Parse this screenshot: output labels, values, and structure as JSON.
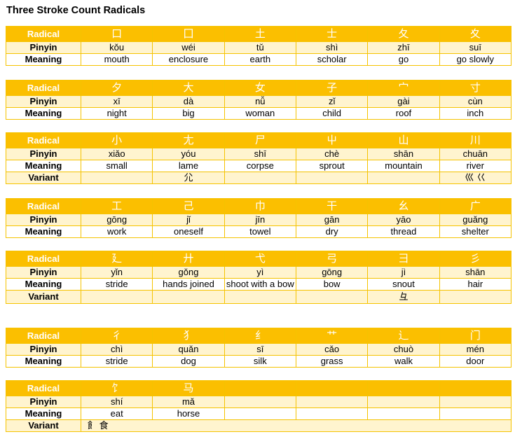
{
  "title": "Three Stroke Count Radicals",
  "labels": {
    "radical": "Radical",
    "pinyin": "Pinyin",
    "meaning": "Meaning",
    "variant": "Variant"
  },
  "colors": {
    "header_bg": "#fbbf00",
    "alt_row_bg": "#fff4cf",
    "border": "#f5c300"
  },
  "tables": [
    {
      "radicals": [
        "口",
        "囗",
        "土",
        "士",
        "夂",
        "夊"
      ],
      "pinyin": [
        "kǒu",
        "wéi",
        "tǔ",
        "shì",
        "zhī",
        "suī"
      ],
      "meaning": [
        "mouth",
        "enclosure",
        "earth",
        "scholar",
        "go",
        "go slowly"
      ]
    },
    {
      "radicals": [
        "夕",
        "大",
        "女",
        "子",
        "宀",
        "寸"
      ],
      "pinyin": [
        "xī",
        "dà",
        "nǚ",
        "zǐ",
        "gài",
        "cùn"
      ],
      "meaning": [
        "night",
        "big",
        "woman",
        "child",
        "roof",
        "inch"
      ]
    },
    {
      "radicals": [
        "小",
        "尢",
        "尸",
        "屮",
        "山",
        "川"
      ],
      "pinyin": [
        "xiǎo",
        "yóu",
        "shī",
        "chè",
        "shān",
        "chuān"
      ],
      "meaning": [
        "small",
        "lame",
        "corpse",
        "sprout",
        "mountain",
        "river"
      ],
      "variant": [
        "",
        "尣",
        "",
        "",
        "",
        "巛 巜"
      ]
    },
    {
      "radicals": [
        "工",
        "己",
        "巾",
        "干",
        "幺",
        "广"
      ],
      "pinyin": [
        "gōng",
        "jǐ",
        "jīn",
        "gān",
        "yāo",
        "guǎng"
      ],
      "meaning": [
        "work",
        "oneself",
        "towel",
        "dry",
        "thread",
        "shelter"
      ]
    },
    {
      "radicals": [
        "廴",
        "廾",
        "弋",
        "弓",
        "彐",
        "彡"
      ],
      "pinyin": [
        "yǐn",
        "gǒng",
        "yì",
        "gōng",
        "jì",
        "shān"
      ],
      "meaning": [
        "stride",
        "hands joined",
        "shoot with a bow",
        "bow",
        "snout",
        "hair"
      ],
      "variant": [
        "",
        "",
        "",
        "",
        "彑",
        ""
      ]
    },
    {
      "radicals": [
        "彳",
        "犭",
        "纟",
        "艹",
        "辶",
        "门"
      ],
      "pinyin": [
        "chì",
        "quǎn",
        "sī",
        "cǎo",
        "chuò",
        "mén"
      ],
      "meaning": [
        "stride",
        "dog",
        "silk",
        "grass",
        "walk",
        "door"
      ]
    },
    {
      "radicals": [
        "饣",
        "马",
        "",
        "",
        "",
        ""
      ],
      "pinyin": [
        "shí",
        "mǎ",
        "",
        "",
        "",
        ""
      ],
      "meaning": [
        "eat",
        "horse",
        "",
        "",
        "",
        ""
      ],
      "variant_text": "飠 食"
    }
  ]
}
